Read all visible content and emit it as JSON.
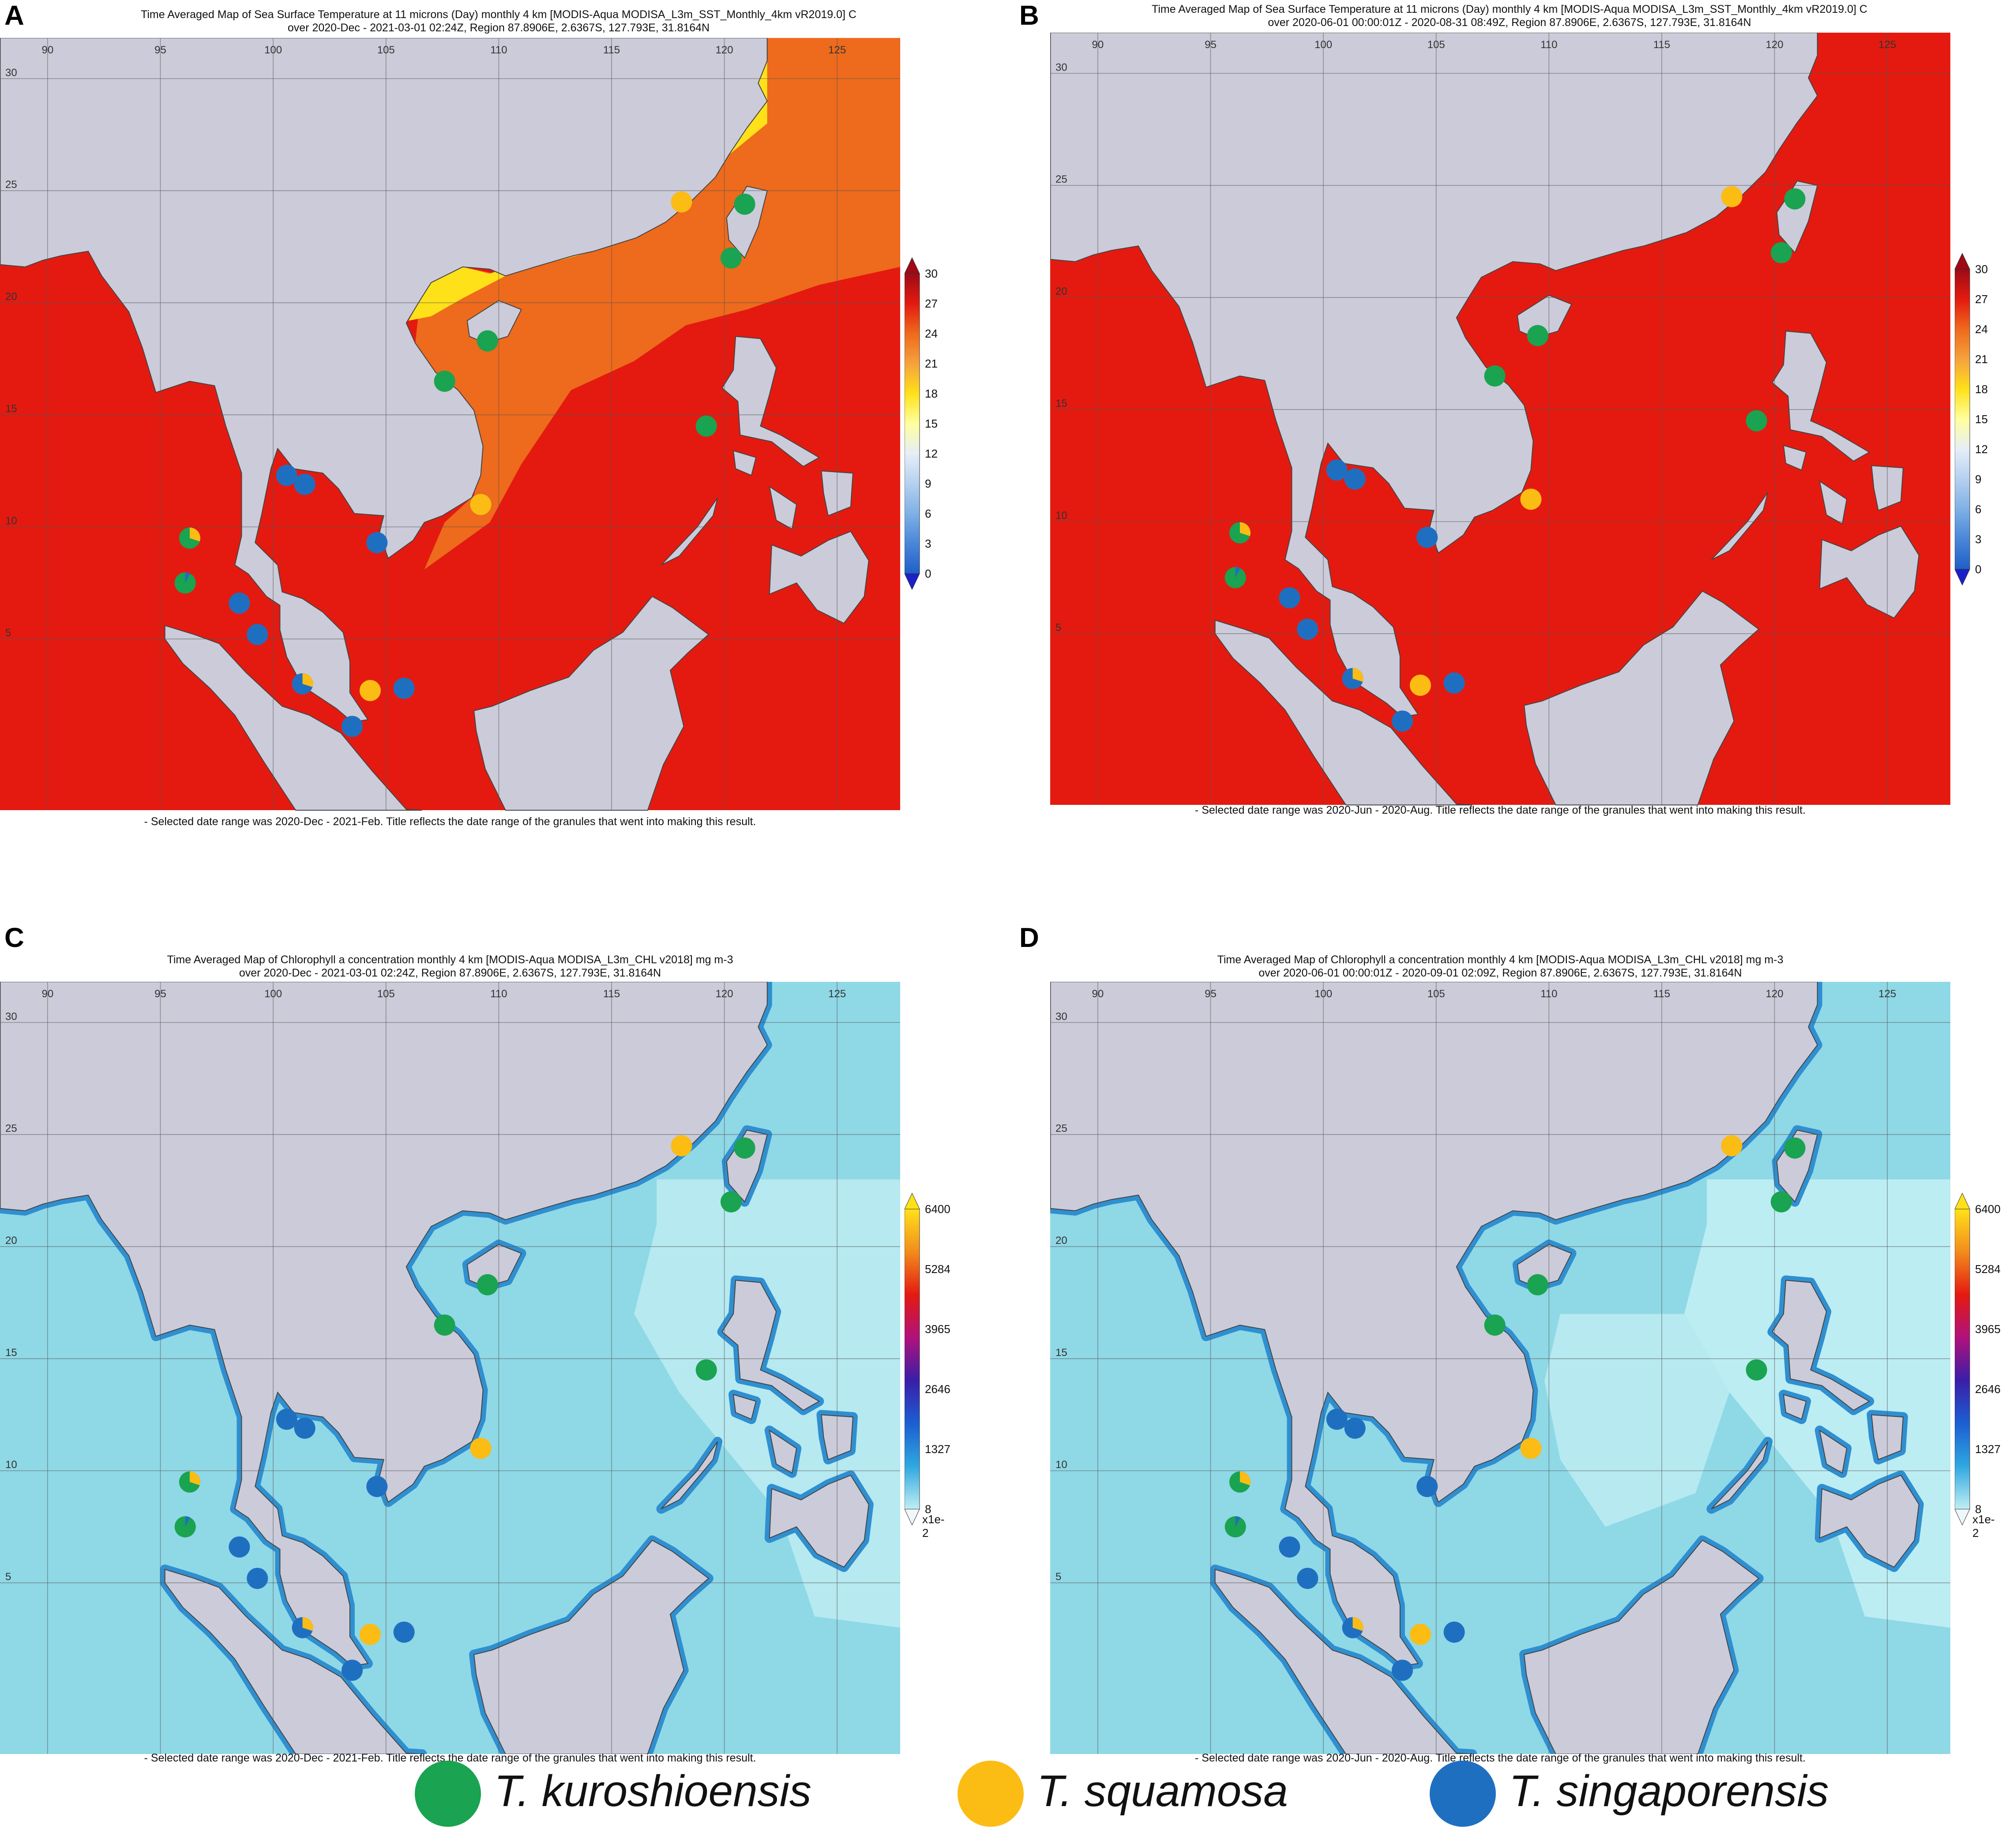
{
  "panels": [
    {
      "id": "A",
      "letter": "A",
      "title_line1": "Time Averaged Map of Sea Surface Temperature at 11 microns (Day) monthly 4 km [MODIS-Aqua MODISA_L3m_SST_Monthly_4km vR2019.0] C",
      "title_line2": "over 2020-Dec - 2021-03-01 02:24Z, Region 87.8906E, 2.6367S, 127.793E, 31.8164N",
      "footer": "- Selected date range was 2020-Dec - 2021-Feb. Title reflects the date range of the granules that went into making this result.",
      "variable": "sst",
      "colorbar_labels": [
        "30",
        "27",
        "24",
        "21",
        "18",
        "15",
        "12",
        "9",
        "6",
        "3",
        "0"
      ]
    },
    {
      "id": "B",
      "letter": "B",
      "title_line1": "Time Averaged Map of Sea Surface Temperature at 11 microns (Day) monthly 4 km [MODIS-Aqua MODISA_L3m_SST_Monthly_4km vR2019.0] C",
      "title_line2": "over 2020-06-01 00:00:01Z - 2020-08-31 08:49Z, Region 87.8906E, 2.6367S, 127.793E, 31.8164N",
      "footer": "- Selected date range was 2020-Jun - 2020-Aug. Title reflects the date range of the granules that went into making this result.",
      "variable": "sst",
      "colorbar_labels": [
        "30",
        "27",
        "24",
        "21",
        "18",
        "15",
        "12",
        "9",
        "6",
        "3",
        "0"
      ]
    },
    {
      "id": "C",
      "letter": "C",
      "title_line1": "Time Averaged Map of Chlorophyll a concentration monthly 4 km [MODIS-Aqua MODISA_L3m_CHL v2018] mg m-3",
      "title_line2": "over 2020-Dec - 2021-03-01 02:24Z, Region 87.8906E, 2.6367S, 127.793E, 31.8164N",
      "footer": "- Selected date range was 2020-Dec - 2021-Feb. Title reflects the date range of the granules that went into making this result.",
      "variable": "chl",
      "colorbar_labels": [
        "6400",
        "5284",
        "3965",
        "2646",
        "1327",
        "8"
      ],
      "colorbar_unit": "x1e-2"
    },
    {
      "id": "D",
      "letter": "D",
      "title_line1": "Time Averaged Map of Chlorophyll a concentration monthly 4 km [MODIS-Aqua MODISA_L3m_CHL v2018] mg m-3",
      "title_line2": "over 2020-06-01 00:00:01Z - 2020-09-01 02:09Z, Region 87.8906E, 2.6367S, 127.793E, 31.8164N",
      "footer": "- Selected date range was 2020-Jun - 2020-Aug. Title reflects the date range of the granules that went into making this result.",
      "variable": "chl",
      "colorbar_labels": [
        "6400",
        "5284",
        "3965",
        "2646",
        "1327",
        "8"
      ],
      "colorbar_unit": "x1e-2"
    }
  ],
  "map_grid": {
    "lon_ticks": [
      "90",
      "95",
      "100",
      "105",
      "110",
      "115",
      "120",
      "125"
    ],
    "lat_ticks": [
      "5",
      "10",
      "15",
      "20",
      "25",
      "30"
    ],
    "lon_range": [
      87.8906,
      127.793
    ],
    "lat_range": [
      -2.6367,
      31.8164
    ]
  },
  "colors": {
    "land": "#cbcbd9",
    "sst_winter_sea": "#ee6a1c",
    "sst_warm_sea": "#e41a10",
    "sst_cool_coast": "#ffe11a",
    "chl_sea": "#8fd8e6",
    "chl_offshore": "#bfeef3",
    "chl_coast": "#2f8fd0",
    "kuroshioensis": "#1aa350",
    "squamosa": "#fbbc14",
    "singaporensis": "#1f6fc1"
  },
  "sampling_sites": [
    {
      "lon": 120.9,
      "lat": 24.4,
      "species": "kuroshioensis"
    },
    {
      "lon": 120.3,
      "lat": 22.0,
      "species": "kuroshioensis"
    },
    {
      "lon": 118.1,
      "lat": 24.5,
      "species": "squamosa"
    },
    {
      "lon": 109.5,
      "lat": 18.3,
      "species": "kuroshioensis"
    },
    {
      "lon": 107.6,
      "lat": 16.5,
      "species": "kuroshioensis"
    },
    {
      "lon": 119.2,
      "lat": 14.5,
      "species": "kuroshioensis"
    },
    {
      "lon": 109.2,
      "lat": 11.0,
      "species": "squamosa"
    },
    {
      "lon": 100.6,
      "lat": 12.3,
      "species": "singaporensis"
    },
    {
      "lon": 101.4,
      "lat": 11.9,
      "species": "singaporensis"
    },
    {
      "lon": 104.6,
      "lat": 9.3,
      "species": "singaporensis"
    },
    {
      "lon": 96.3,
      "lat": 9.5,
      "species": "mixed_kuro_squamosa"
    },
    {
      "lon": 96.1,
      "lat": 7.5,
      "species": "mixed_kuro_singa"
    },
    {
      "lon": 98.5,
      "lat": 6.6,
      "species": "singaporensis"
    },
    {
      "lon": 99.3,
      "lat": 5.2,
      "species": "singaporensis"
    },
    {
      "lon": 101.3,
      "lat": 3.0,
      "species": "mixed_singa_squamosa"
    },
    {
      "lon": 104.3,
      "lat": 2.7,
      "species": "squamosa"
    },
    {
      "lon": 105.8,
      "lat": 2.8,
      "species": "singaporensis"
    },
    {
      "lon": 103.5,
      "lat": 1.1,
      "species": "singaporensis"
    }
  ],
  "legend": [
    {
      "label": "T. kuroshioensis",
      "color": "#1aa350"
    },
    {
      "label": "T. squamosa",
      "color": "#fbbc14"
    },
    {
      "label": "T. singaporensis",
      "color": "#1f6fc1"
    }
  ]
}
